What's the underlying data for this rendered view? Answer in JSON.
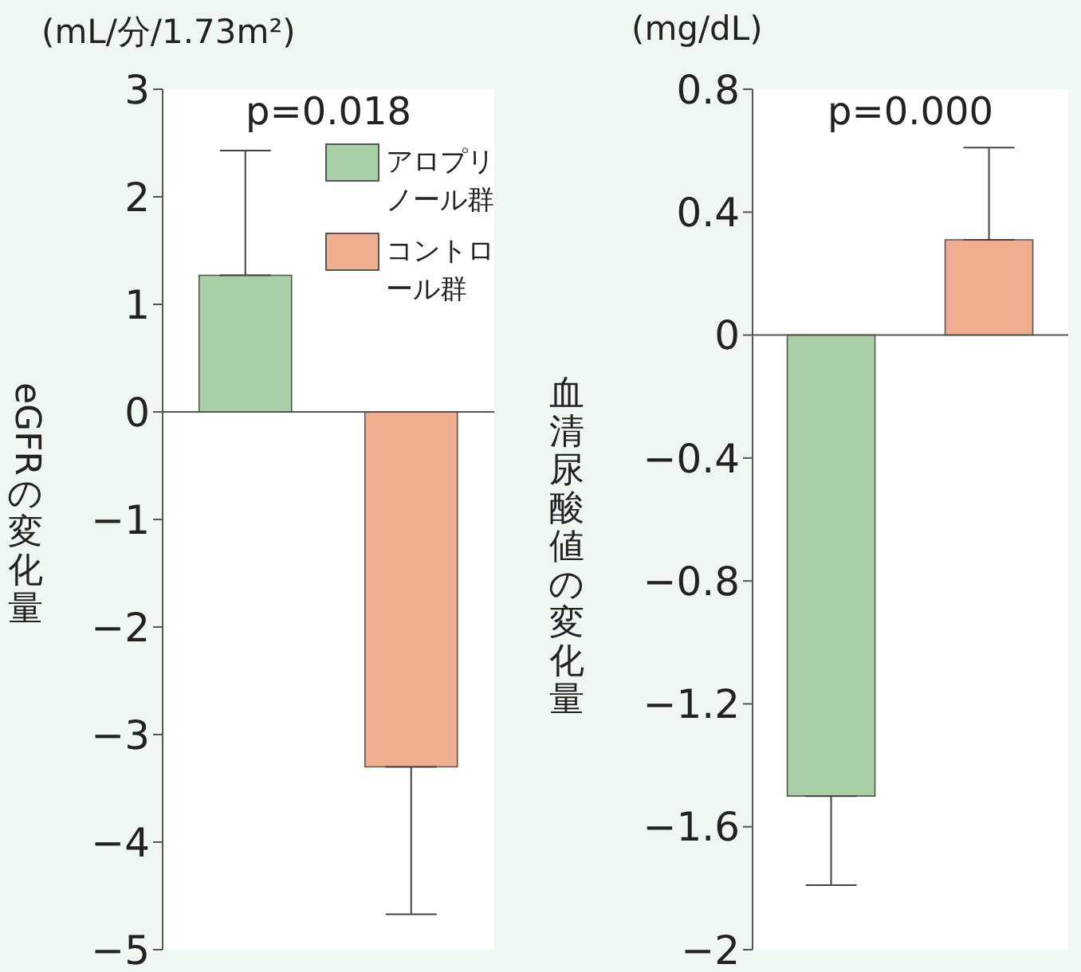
{
  "chart_data": [
    {
      "type": "bar",
      "categories": [
        null,
        null
      ],
      "ylabel": "eGFRの変化量",
      "annotations": [
        "(mL/分/1.73m²)",
        "p=0.018"
      ],
      "ylim": [
        -5,
        3
      ],
      "yticks": [
        -5,
        -4,
        -3,
        -2,
        -1,
        0,
        1,
        2,
        3
      ],
      "legend": "top right",
      "grid": false,
      "ref_lines": [
        {
          "axis": "y",
          "value": 0
        }
      ],
      "series": [
        {
          "name": "アロプリノール群",
          "color": "#a9cfa7",
          "values": [
            1.27,
            null
          ],
          "errors": [
            [
              1.27,
              2.43
            ],
            null
          ]
        },
        {
          "name": "コントロール群",
          "color": "#eeae8f",
          "values": [
            null,
            -3.3
          ],
          "errors": [
            null,
            [
              -4.67,
              -3.3
            ]
          ]
        }
      ]
    },
    {
      "type": "bar",
      "categories": [
        null,
        null
      ],
      "ylabel": "血清尿酸値の変化量",
      "annotations": [
        "(mg/dL)",
        "p=0.000"
      ],
      "ylim": [
        -2,
        0.8
      ],
      "yticks": [
        -2,
        -1.6,
        -1.2,
        -0.8,
        -0.4,
        0,
        0.4,
        0.8
      ],
      "grid": false,
      "ref_lines": [
        {
          "axis": "y",
          "value": 0
        }
      ],
      "series": [
        {
          "color": "#a9cfa7",
          "values": [
            -1.5,
            null
          ],
          "errors": [
            [
              -1.79,
              -1.5
            ],
            null
          ]
        },
        {
          "color": "#eeae8f",
          "values": [
            null,
            0.31
          ],
          "errors": [
            null,
            [
              0.31,
              0.61
            ]
          ]
        }
      ]
    }
  ]
}
